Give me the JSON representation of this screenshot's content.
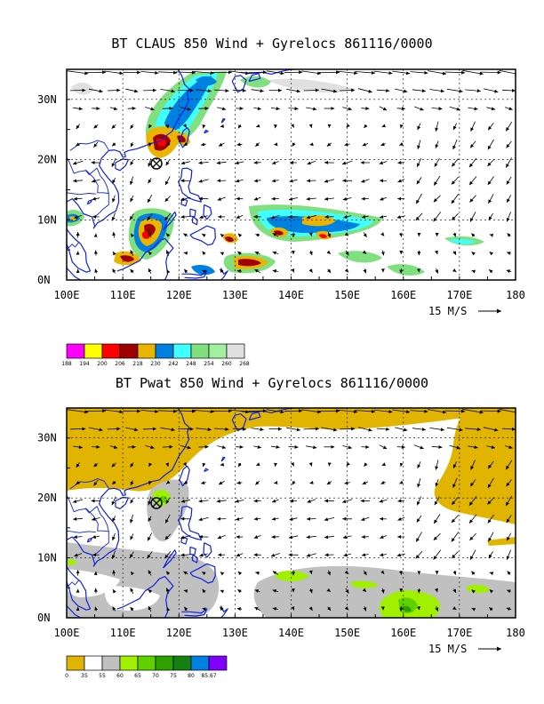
{
  "panel1": {
    "title": "BT CLAUS 850 Wind + Gyrelocs 861116/0000",
    "lat_labels": [
      "30N",
      "20N",
      "10N",
      "0N"
    ],
    "lon_labels": [
      "100E",
      "110E",
      "120E",
      "130E",
      "140E",
      "150E",
      "160E",
      "170E",
      "180"
    ],
    "ref_vector": "15 M/S",
    "colorbar": {
      "colors": [
        "#ff00ff",
        "#ffff00",
        "#ff0000",
        "#a00000",
        "#ebb400",
        "#0080e0",
        "#40ffff",
        "#80e080",
        "#a0f0a0",
        "#e0e0e0"
      ],
      "labels": [
        "188",
        "194",
        "200",
        "206",
        "218",
        "230",
        "242",
        "248",
        "254",
        "260",
        "268"
      ]
    }
  },
  "panel2": {
    "title": "BT Pwat 850 Wind + Gyrelocs 861116/0000",
    "lat_labels": [
      "30N",
      "20N",
      "10N",
      "0N"
    ],
    "lon_labels": [
      "100E",
      "110E",
      "120E",
      "130E",
      "140E",
      "150E",
      "160E",
      "170E",
      "180"
    ],
    "ref_vector": "15 M/S",
    "colorbar": {
      "colors": [
        "#e0b400",
        "#ffffff",
        "#c0c0c0",
        "#a0f000",
        "#60d000",
        "#2ea000",
        "#148014",
        "#0080e0",
        "#8000ff"
      ],
      "labels": [
        "0",
        "35",
        "55",
        "60",
        "65",
        "70",
        "75",
        "80",
        "85.67"
      ]
    }
  },
  "gyre_marker_icon": "circle-x-icon"
}
